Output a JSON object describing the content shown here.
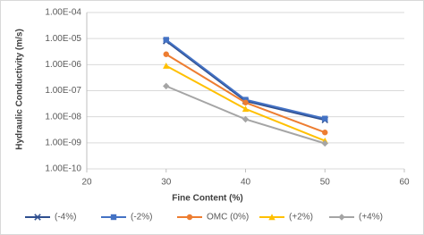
{
  "chart_data": {
    "type": "line",
    "x_label": "Fine Content (%)",
    "y_label": "Hydraulic Conductivity (m/s)",
    "x": [
      30,
      40,
      50
    ],
    "series": [
      {
        "name": "(-4%)",
        "color": "#2f4f8f",
        "marker": "x",
        "values": [
          8e-06,
          4e-08,
          7.5e-09
        ]
      },
      {
        "name": "(-2%)",
        "color": "#4472c4",
        "marker": "square",
        "values": [
          9e-06,
          4.5e-08,
          8.5e-09
        ]
      },
      {
        "name": "OMC (0%)",
        "color": "#ed7d31",
        "marker": "circle",
        "values": [
          2.5e-06,
          3.5e-08,
          2.5e-09
        ]
      },
      {
        "name": "(+2%)",
        "color": "#ffc000",
        "marker": "triangle",
        "values": [
          9e-07,
          2e-08,
          1.2e-09
        ]
      },
      {
        "name": "(+4%)",
        "color": "#a5a5a5",
        "marker": "diamond",
        "values": [
          1.5e-07,
          8e-09,
          9.5e-10
        ]
      }
    ],
    "xlim": [
      20,
      60
    ],
    "xticks": [
      20,
      30,
      40,
      50,
      60
    ],
    "ylim": [
      1e-10,
      0.0001
    ],
    "yticks": [
      {
        "value": 1e-10,
        "label": "1.00E-10"
      },
      {
        "value": 1e-09,
        "label": "1.00E-09"
      },
      {
        "value": 1e-08,
        "label": "1.00E-08"
      },
      {
        "value": 1e-07,
        "label": "1.00E-07"
      },
      {
        "value": 1e-06,
        "label": "1.00E-06"
      },
      {
        "value": 1e-05,
        "label": "1.00E-05"
      },
      {
        "value": 0.0001,
        "label": "1.00E-04"
      }
    ],
    "y_log": true,
    "grid": true,
    "legend": "bottom"
  }
}
